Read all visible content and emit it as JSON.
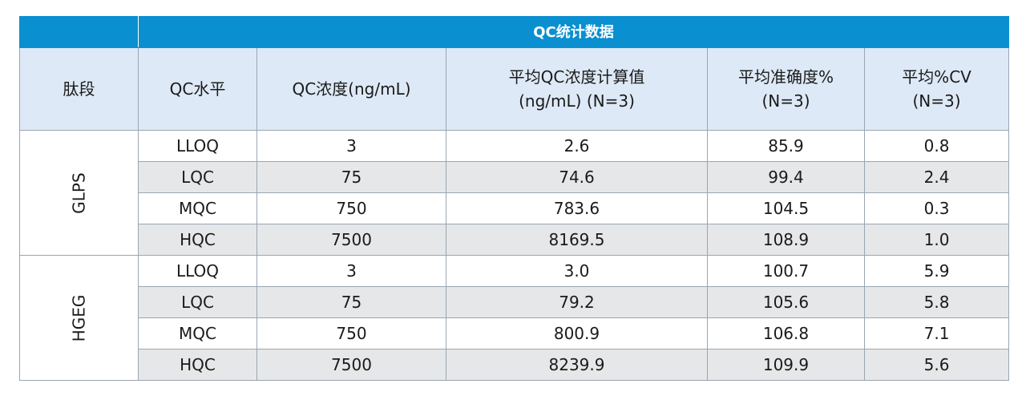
{
  "table": {
    "banner_title": "QC统计数据",
    "headers": {
      "peptide": "肽段",
      "qc_level": "QC水平",
      "qc_conc": "QC浓度(ng/mL)",
      "mean_calc_line1": "平均QC浓度计算值",
      "mean_calc_line2": "(ng/mL) (N=3)",
      "mean_acc_line1": "平均准确度%",
      "mean_acc_line2": "(N=3)",
      "mean_cv_line1": "平均%CV",
      "mean_cv_line2": "(N=3)"
    },
    "groups": [
      {
        "peptide": "GLPS",
        "rows": [
          {
            "level": "LLOQ",
            "conc": "3",
            "calc": "2.6",
            "acc": "85.9",
            "cv": "0.8"
          },
          {
            "level": "LQC",
            "conc": "75",
            "calc": "74.6",
            "acc": "99.4",
            "cv": "2.4"
          },
          {
            "level": "MQC",
            "conc": "750",
            "calc": "783.6",
            "acc": "104.5",
            "cv": "0.3"
          },
          {
            "level": "HQC",
            "conc": "7500",
            "calc": "8169.5",
            "acc": "108.9",
            "cv": "1.0"
          }
        ]
      },
      {
        "peptide": "HGEG",
        "rows": [
          {
            "level": "LLOQ",
            "conc": "3",
            "calc": "3.0",
            "acc": "100.7",
            "cv": "5.9"
          },
          {
            "level": "LQC",
            "conc": "75",
            "calc": "79.2",
            "acc": "105.6",
            "cv": "5.8"
          },
          {
            "level": "MQC",
            "conc": "750",
            "calc": "800.9",
            "acc": "106.8",
            "cv": "7.1"
          },
          {
            "level": "HQC",
            "conc": "7500",
            "calc": "8239.9",
            "acc": "109.9",
            "cv": "5.6"
          }
        ]
      }
    ],
    "colors": {
      "banner": "#0a8fd1",
      "header_bg": "#dde9f6",
      "shaded_row": "#e6e7e8",
      "border": "#9aa6b2"
    }
  }
}
